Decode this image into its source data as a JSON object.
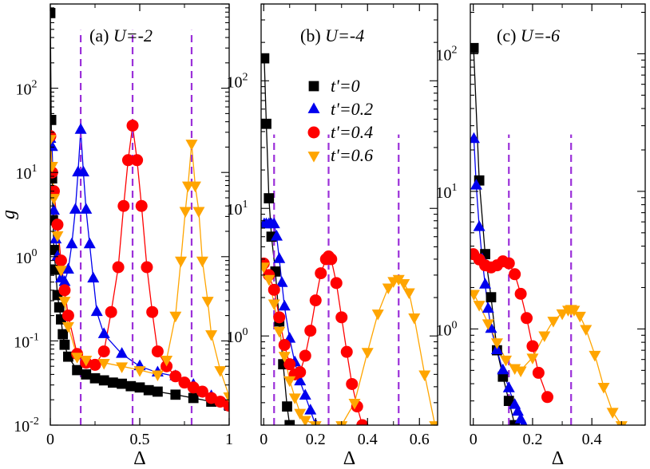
{
  "chart_data": [
    {
      "type": "line",
      "title_prefix": "(a) ",
      "title_var": "U=-2",
      "xlabel": "Δ",
      "ylabel": "g",
      "yscale": "log",
      "xlim": [
        0,
        1.0
      ],
      "ylim": [
        0.01,
        1000
      ],
      "xticks": [
        0,
        0.5,
        1.0
      ],
      "xtick_labels": [
        "0",
        "0.5",
        "1"
      ],
      "yticks": [
        0.01,
        0.1,
        1,
        10,
        100
      ],
      "ytick_exponents": [
        "-2",
        "-1",
        "0",
        "1",
        "2"
      ],
      "peaks": [
        0.17,
        0.46,
        0.79
      ],
      "series": [
        {
          "name": "t'=0",
          "marker": "square",
          "color": "#000000",
          "x": [
            0,
            0.005,
            0.01,
            0.015,
            0.02,
            0.03,
            0.04,
            0.05,
            0.06,
            0.07,
            0.08,
            0.1,
            0.15,
            0.2,
            0.25,
            0.3,
            0.35,
            0.4,
            0.45,
            0.5,
            0.55,
            0.6,
            0.7,
            0.8,
            0.9,
            1.0
          ],
          "y": [
            780,
            42,
            8.5,
            2.7,
            1.2,
            0.7,
            0.35,
            0.25,
            0.18,
            0.12,
            0.09,
            0.065,
            0.045,
            0.04,
            0.036,
            0.034,
            0.032,
            0.031,
            0.029,
            0.028,
            0.026,
            0.025,
            0.023,
            0.021,
            0.019,
            0.017
          ]
        },
        {
          "name": "t'=0.2",
          "marker": "triangle-up",
          "color": "#0000ee",
          "x": [
            0,
            0.01,
            0.02,
            0.03,
            0.04,
            0.06,
            0.08,
            0.1,
            0.12,
            0.14,
            0.155,
            0.17,
            0.185,
            0.2,
            0.22,
            0.24,
            0.26,
            0.3,
            0.4,
            0.5,
            0.6,
            0.7,
            0.8,
            0.9,
            1.0
          ],
          "y": [
            25,
            20,
            3.5,
            1.6,
            1.0,
            0.55,
            0.5,
            0.7,
            1.4,
            3.6,
            10,
            32,
            10,
            3.6,
            1.4,
            0.55,
            0.22,
            0.12,
            0.07,
            0.05,
            0.042,
            0.038,
            0.03,
            0.022,
            0.017
          ]
        },
        {
          "name": "t'=0.4",
          "marker": "circle",
          "color": "#ff0000",
          "x": [
            0,
            0.01,
            0.02,
            0.04,
            0.06,
            0.08,
            0.1,
            0.15,
            0.2,
            0.25,
            0.3,
            0.34,
            0.38,
            0.41,
            0.435,
            0.46,
            0.485,
            0.51,
            0.54,
            0.57,
            0.6,
            0.65,
            0.7,
            0.75,
            0.8,
            0.85,
            0.9,
            0.95,
            1.0
          ],
          "y": [
            27,
            10,
            6,
            2.4,
            0.9,
            0.4,
            0.2,
            0.07,
            0.055,
            0.052,
            0.075,
            0.22,
            0.75,
            4,
            14,
            36,
            14,
            4,
            0.75,
            0.22,
            0.075,
            0.05,
            0.038,
            0.032,
            0.028,
            0.025,
            0.021,
            0.019,
            0.017
          ]
        },
        {
          "name": "t'=0.6",
          "marker": "triangle-down",
          "color": "#ffa500",
          "x": [
            0,
            0.01,
            0.02,
            0.04,
            0.06,
            0.08,
            0.1,
            0.15,
            0.2,
            0.3,
            0.4,
            0.5,
            0.6,
            0.65,
            0.7,
            0.73,
            0.755,
            0.77,
            0.79,
            0.81,
            0.83,
            0.85,
            0.88,
            0.9,
            0.95,
            1.0
          ],
          "y": [
            25,
            12,
            5,
            1.8,
            0.7,
            0.3,
            0.15,
            0.065,
            0.06,
            0.055,
            0.05,
            0.045,
            0.04,
            0.06,
            0.2,
            0.9,
            3.5,
            7,
            22,
            7,
            3.5,
            0.9,
            0.3,
            0.12,
            0.045,
            0.022
          ]
        }
      ]
    },
    {
      "type": "line",
      "title_prefix": "(b) ",
      "title_var": "U=-4",
      "xlabel": "Δ",
      "ylabel": "",
      "yscale": "log",
      "xlim": [
        -0.01,
        0.67
      ],
      "ylim": [
        0.2,
        400
      ],
      "xticks": [
        0,
        0.2,
        0.4,
        0.6
      ],
      "xtick_labels": [
        "0",
        "0.2",
        "0.4",
        "0.6"
      ],
      "yticks": [
        1,
        10,
        100
      ],
      "ytick_exponents": [
        "0",
        "1",
        "2"
      ],
      "peaks": [
        0.04,
        0.25,
        0.52
      ],
      "series": [
        {
          "name": "t'=0",
          "marker": "square",
          "color": "#000000",
          "x": [
            0.002,
            0.01,
            0.02,
            0.03,
            0.045,
            0.06,
            0.075,
            0.09,
            0.1
          ],
          "y": [
            150,
            46,
            12,
            6,
            3.2,
            1.3,
            0.6,
            0.28,
            0.2
          ]
        },
        {
          "name": "t'=0.2",
          "marker": "triangle-up",
          "color": "#0000ee",
          "x": [
            0.002,
            0.01,
            0.02,
            0.03,
            0.04,
            0.05,
            0.06,
            0.07,
            0.08,
            0.1,
            0.12,
            0.14,
            0.16,
            0.18,
            0.2
          ],
          "y": [
            7.5,
            7.5,
            7.5,
            7.5,
            7.5,
            6,
            4,
            2.6,
            1.7,
            0.95,
            0.62,
            0.44,
            0.34,
            0.26,
            0.2
          ]
        },
        {
          "name": "t'=0.4",
          "marker": "circle",
          "color": "#ff0000",
          "x": [
            0,
            0.02,
            0.04,
            0.06,
            0.08,
            0.1,
            0.12,
            0.14,
            0.16,
            0.18,
            0.2,
            0.22,
            0.24,
            0.25,
            0.26,
            0.28,
            0.3,
            0.32,
            0.34,
            0.36,
            0.38
          ],
          "y": [
            3.7,
            3,
            2.3,
            1.4,
            0.85,
            0.6,
            0.5,
            0.52,
            0.7,
            1.1,
            1.9,
            3.1,
            4,
            4.2,
            4,
            2.6,
            1.4,
            0.75,
            0.42,
            0.28,
            0.2
          ]
        },
        {
          "name": "t'=0.6",
          "marker": "triangle-down",
          "color": "#ffa500",
          "x": [
            0,
            0.02,
            0.04,
            0.06,
            0.08,
            0.1,
            0.12,
            0.14,
            0.16,
            0.2,
            0.3,
            0.35,
            0.4,
            0.44,
            0.48,
            0.5,
            0.52,
            0.54,
            0.56,
            0.58,
            0.62,
            0.66
          ],
          "y": [
            3.5,
            2.8,
            1.8,
            1.1,
            0.7,
            0.45,
            0.33,
            0.25,
            0.22,
            0.2,
            0.2,
            0.3,
            0.75,
            1.5,
            2.4,
            2.7,
            2.8,
            2.6,
            2.2,
            1.4,
            0.5,
            0.2
          ]
        }
      ]
    },
    {
      "type": "line",
      "title_prefix": "(c) ",
      "title_var": "U=-6",
      "xlabel": "Δ",
      "ylabel": "",
      "yscale": "log",
      "xlim": [
        -0.01,
        0.58
      ],
      "ylim": [
        0.2,
        230
      ],
      "xticks": [
        0,
        0.2,
        0.4
      ],
      "xtick_labels": [
        "0",
        "0.2",
        "0.4"
      ],
      "yticks": [
        1,
        10,
        100
      ],
      "ytick_exponents": [
        "0",
        "1",
        "2"
      ],
      "peaks": [
        0.12,
        0.33
      ],
      "series": [
        {
          "name": "t'=0",
          "marker": "square",
          "color": "#000000",
          "x": [
            0.001,
            0.02,
            0.04,
            0.06,
            0.08,
            0.1,
            0.12,
            0.14
          ],
          "y": [
            110,
            12,
            3.5,
            1.7,
            0.7,
            0.45,
            0.3,
            0.2
          ]
        },
        {
          "name": "t'=0.2",
          "marker": "triangle-up",
          "color": "#0000ee",
          "x": [
            0.002,
            0.01,
            0.02,
            0.03,
            0.04,
            0.05,
            0.06,
            0.08,
            0.1,
            0.12,
            0.14,
            0.15,
            0.16,
            0.17
          ],
          "y": [
            24,
            11,
            5.5,
            3.2,
            2.1,
            1.4,
            1.0,
            0.7,
            0.5,
            0.37,
            0.28,
            0.25,
            0.22,
            0.2
          ]
        },
        {
          "name": "t'=0.4",
          "marker": "circle",
          "color": "#ff0000",
          "x": [
            0,
            0.02,
            0.04,
            0.06,
            0.08,
            0.1,
            0.12,
            0.14,
            0.16,
            0.18,
            0.2,
            0.22,
            0.25
          ],
          "y": [
            3.5,
            3.2,
            2.9,
            2.8,
            2.9,
            3.1,
            3.0,
            2.5,
            1.8,
            1.2,
            0.75,
            0.48,
            0.32
          ]
        },
        {
          "name": "t'=0.6",
          "marker": "triangle-down",
          "color": "#ffa500",
          "x": [
            0.002,
            0.02,
            0.05,
            0.08,
            0.11,
            0.14,
            0.16,
            0.2,
            0.24,
            0.27,
            0.3,
            0.32,
            0.33,
            0.34,
            0.36,
            0.38,
            0.41,
            0.44,
            0.47,
            0.5
          ],
          "y": [
            1.8,
            1.5,
            1.1,
            0.8,
            0.6,
            0.52,
            0.5,
            0.62,
            0.9,
            1.15,
            1.3,
            1.38,
            1.4,
            1.38,
            1.25,
            1.0,
            0.65,
            0.38,
            0.25,
            0.2
          ]
        }
      ]
    }
  ],
  "legend": {
    "placement": "panel-b-upper",
    "entries": [
      {
        "label": "t'=0",
        "marker": "square",
        "color": "#000000"
      },
      {
        "label": "t'=0.2",
        "marker": "triangle-up",
        "color": "#0000ee"
      },
      {
        "label": "t'=0.4",
        "marker": "circle",
        "color": "#ff0000"
      },
      {
        "label": "t'=0.6",
        "marker": "triangle-down",
        "color": "#ffa500"
      }
    ]
  },
  "peak_line_color": "#9b30d9"
}
